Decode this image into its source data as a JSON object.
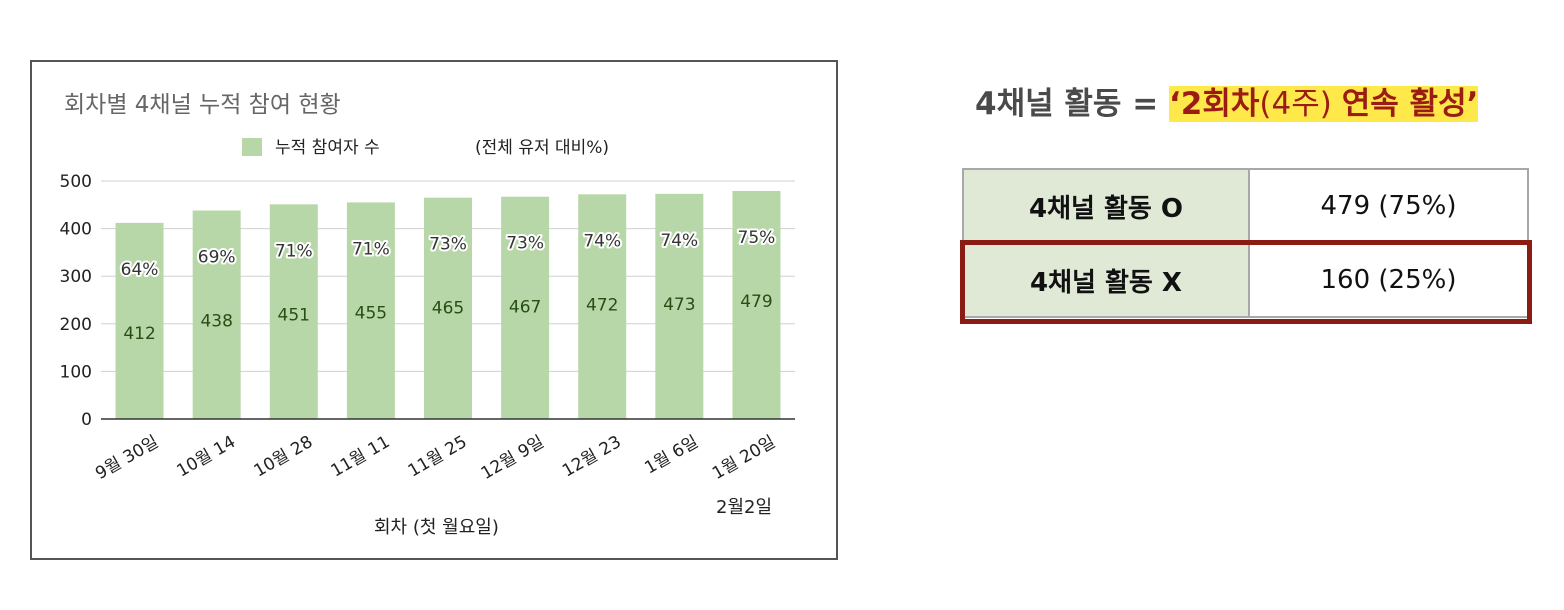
{
  "chart_data": {
    "type": "bar",
    "title": "회차별 4채널 누적 참여 현황",
    "legend": {
      "series_label": "누적 참여자 수",
      "note": "(전체 유저 대비%)",
      "placement": "top"
    },
    "xlabel": "회차 (첫 월요일)",
    "ylabel": "",
    "ylim": [
      0,
      500
    ],
    "yticks": [
      "0",
      "100",
      "200",
      "300",
      "400",
      "500"
    ],
    "categories": [
      "9월 30일",
      "10월 14",
      "10월 28",
      "11월 11",
      "11월 25",
      "12월 9일",
      "12월 23",
      "1월 6일",
      "1월 20일"
    ],
    "series": [
      {
        "name": "누적 참여자 수",
        "values": [
          412,
          438,
          451,
          455,
          465,
          467,
          472,
          473,
          479
        ],
        "color": "#b7d7a8"
      }
    ],
    "percent_labels": [
      "64%",
      "69%",
      "71%",
      "71%",
      "73%",
      "73%",
      "74%",
      "74%",
      "75%"
    ],
    "annotation": "2월2일",
    "grid": true,
    "colors": {
      "bar": "#b7d7a8",
      "value_text": "#274e13",
      "axis_text": "#222222",
      "title_text": "#666666"
    }
  },
  "headline": {
    "prefix": "4채널 활동 = ",
    "open_quote": "‘",
    "bold1": "2회차",
    "light": "(4주) ",
    "bold2": "연속 활성",
    "close_quote": "’"
  },
  "summary_table": {
    "rows": [
      {
        "label": "4채널 활동 O",
        "value": "479 (75%)"
      },
      {
        "label": "4채널 활동 X",
        "value": "160 (25%)"
      }
    ],
    "highlighted_row": 1,
    "colors": {
      "label_bg": "#dfe9d6",
      "highlight_border": "#8b1c14"
    }
  }
}
